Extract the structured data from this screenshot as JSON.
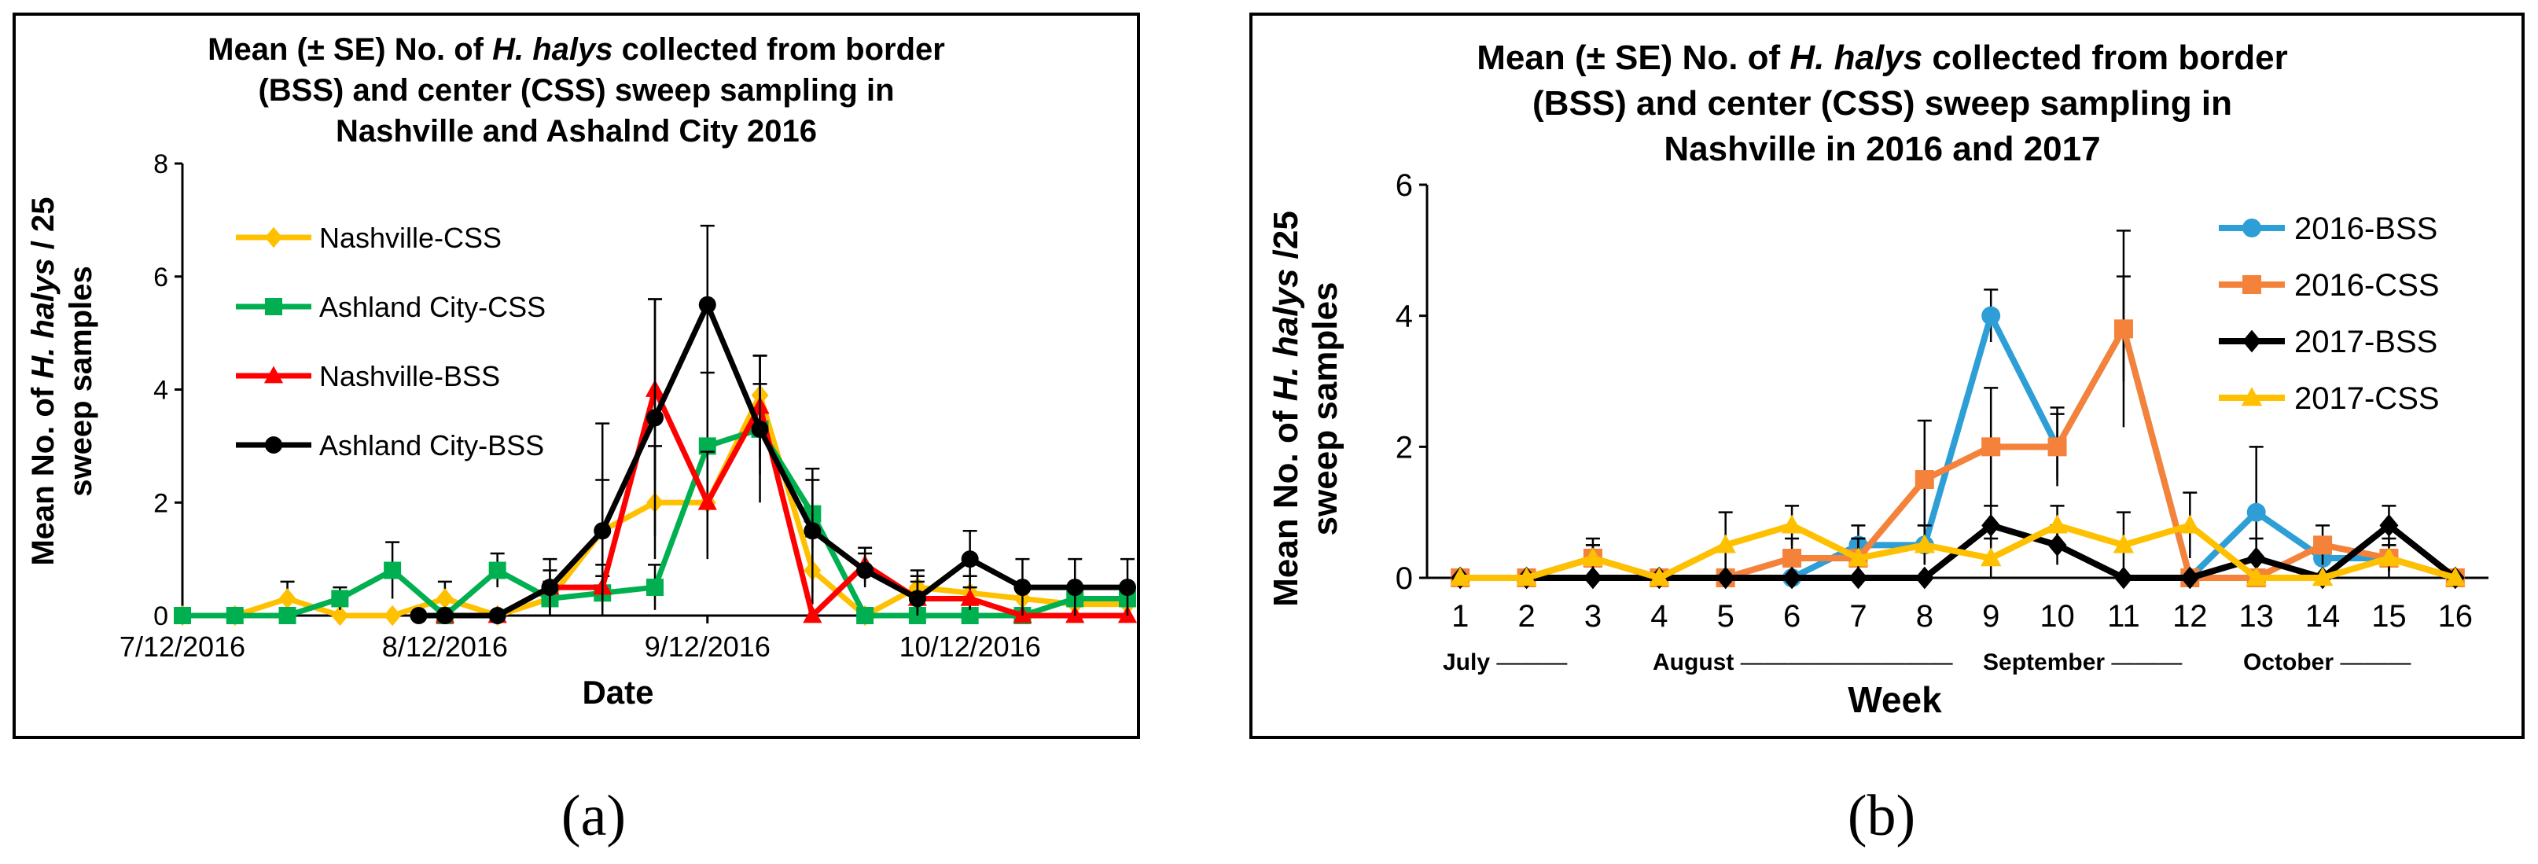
{
  "chart_data": [
    {
      "type": "line",
      "panel_label": "(a)",
      "title_lines": [
        [
          "Mean (± SE) No. of ",
          "H. halys",
          " collected from border"
        ],
        [
          "(BSS) and center (CSS) sweep sampling in"
        ],
        [
          "Nashville and Ashalnd City 2016"
        ]
      ],
      "ylabel_lines": [
        [
          "Mean No. of ",
          "H. halys",
          " / 25"
        ],
        [
          "sweep samples"
        ]
      ],
      "xlabel": "Date",
      "ylim": [
        0,
        8
      ],
      "yticks": [
        "0",
        "2",
        "4",
        "6",
        "8"
      ],
      "x_range": [
        0,
        18
      ],
      "xticks": [
        {
          "pos": 0,
          "label": "7/12/2016"
        },
        {
          "pos": 5,
          "label": "8/12/2016"
        },
        {
          "pos": 10,
          "label": "9/12/2016"
        },
        {
          "pos": 15,
          "label": "10/12/2016"
        }
      ],
      "series": [
        {
          "name": "Nashville-CSS",
          "color": "#FFC000",
          "marker": "diamond",
          "x": [
            0,
            1,
            2,
            3,
            4,
            5,
            6,
            7,
            8,
            9,
            10,
            11,
            12,
            13,
            14,
            15,
            16,
            17,
            18
          ],
          "y": [
            0,
            0,
            0.3,
            0,
            0,
            0.3,
            0,
            0.3,
            1.5,
            2,
            2,
            3.9,
            0.8,
            0,
            0.5,
            0.4,
            0.3,
            0.2,
            0.2
          ],
          "err": [
            0,
            0,
            0.3,
            0,
            0,
            0.3,
            0,
            0.3,
            0.9,
            1,
            1,
            0.7,
            0.6,
            0,
            0.3,
            0.3,
            0.2,
            0.1,
            0.1
          ]
        },
        {
          "name": "Ashland City-CSS",
          "color": "#00B050",
          "marker": "square",
          "x": [
            0,
            1,
            2,
            3,
            4,
            5,
            6,
            7,
            8,
            9,
            10,
            11,
            12,
            13,
            14,
            15,
            16,
            17,
            18
          ],
          "y": [
            0,
            0,
            0,
            0.3,
            0.8,
            0,
            0.8,
            0.3,
            0.4,
            0.5,
            3,
            3.3,
            1.8,
            0,
            0,
            0,
            0,
            0.3,
            0.3
          ],
          "err": [
            0,
            0,
            0,
            0.2,
            0.5,
            0,
            0.3,
            0.2,
            0.3,
            0.4,
            1.3,
            0.8,
            0.6,
            0,
            0,
            0,
            0,
            0.2,
            0.2
          ]
        },
        {
          "name": "Nashville-BSS",
          "color": "#FF0000",
          "marker": "triangle",
          "x": [
            5,
            6,
            7,
            8,
            9,
            10,
            11,
            12,
            13,
            14,
            15,
            16,
            17,
            18
          ],
          "y": [
            0,
            0,
            0.5,
            0.5,
            4,
            2,
            3.7,
            0,
            0.9,
            0.3,
            0.3,
            0,
            0,
            0
          ],
          "err": [
            0,
            0,
            0.3,
            0.4,
            1.6,
            0.9,
            0.9,
            0,
            0.3,
            0.3,
            0.2,
            0,
            0,
            0
          ]
        },
        {
          "name": "Ashland City-BSS",
          "color": "#000000",
          "marker": "circle",
          "x": [
            4.5,
            5,
            6,
            7,
            8,
            9,
            10,
            11,
            12,
            13,
            14,
            15,
            16,
            17,
            18
          ],
          "y": [
            0,
            0,
            0,
            0.5,
            1.5,
            3.5,
            5.5,
            3.3,
            1.5,
            0.8,
            0.3,
            1,
            0.5,
            0.5,
            0.5
          ],
          "err": [
            0,
            0,
            0,
            0.5,
            1.9,
            2.1,
            1.4,
            1.3,
            1.1,
            0.3,
            0.4,
            0.5,
            0.5,
            0.5,
            0.5
          ]
        }
      ]
    },
    {
      "type": "line",
      "panel_label": "(b)",
      "title_lines": [
        [
          "Mean (± SE) No. of ",
          "H. halys",
          " collected from border"
        ],
        [
          "(BSS) and center (CSS) sweep sampling in"
        ],
        [
          "Nashville in 2016 and 2017"
        ]
      ],
      "ylabel_lines": [
        [
          "Mean No. of ",
          "H. halys",
          " /25"
        ],
        [
          "sweep samples"
        ]
      ],
      "xlabel": "Week",
      "ylim": [
        0,
        6
      ],
      "yticks": [
        "0",
        "2",
        "4",
        "6"
      ],
      "categories": [
        "1",
        "2",
        "3",
        "4",
        "5",
        "6",
        "7",
        "8",
        "9",
        "10",
        "11",
        "12",
        "13",
        "14",
        "15",
        "16"
      ],
      "months": [
        {
          "label": "July",
          "line": "———"
        },
        {
          "label": "August",
          "line": "—————————"
        },
        {
          "label": "September",
          "line": "———"
        },
        {
          "label": "October",
          "line": "———"
        }
      ],
      "series": [
        {
          "name": "2016-BSS",
          "color": "#2E9FD6",
          "marker": "circle",
          "y": [
            0,
            0,
            0.3,
            0,
            0,
            0,
            0.5,
            0.5,
            4,
            2,
            3.8,
            0,
            1,
            0.3,
            0.3,
            0
          ],
          "err": [
            0,
            0,
            0.2,
            0,
            0,
            0,
            0.3,
            0.3,
            0.4,
            0.5,
            0.8,
            0,
            1,
            0.2,
            0.3,
            0
          ]
        },
        {
          "name": "2016-CSS",
          "color": "#F4823B",
          "marker": "square",
          "y": [
            0,
            0,
            0.3,
            0,
            0,
            0.3,
            0.3,
            1.5,
            2,
            2,
            3.8,
            0,
            0,
            0.5,
            0.3,
            0
          ],
          "err": [
            0,
            0,
            0.2,
            0,
            0,
            0.3,
            0.3,
            0.9,
            0.9,
            0.6,
            1.5,
            0,
            0,
            0.3,
            0.2,
            0
          ]
        },
        {
          "name": "2017-BSS",
          "color": "#000000",
          "marker": "diamond",
          "y": [
            0,
            0,
            0,
            0,
            0,
            0,
            0,
            0,
            0.8,
            0.5,
            0,
            0,
            0.3,
            0,
            0.8,
            0
          ],
          "err": [
            0,
            0,
            0,
            0,
            0,
            0,
            0,
            0,
            0.3,
            0.3,
            0,
            0,
            0.3,
            0,
            0.3,
            0
          ]
        },
        {
          "name": "2017-CSS",
          "color": "#FFC000",
          "marker": "triangle",
          "y": [
            0,
            0,
            0.3,
            0,
            0.5,
            0.8,
            0.3,
            0.5,
            0.3,
            0.8,
            0.5,
            0.8,
            0,
            0,
            0.3,
            0
          ],
          "err": [
            0,
            0,
            0.3,
            0,
            0.5,
            0.3,
            0.3,
            0.3,
            0.3,
            0.3,
            0.5,
            0.5,
            0,
            0,
            0.2,
            0
          ]
        }
      ]
    }
  ]
}
